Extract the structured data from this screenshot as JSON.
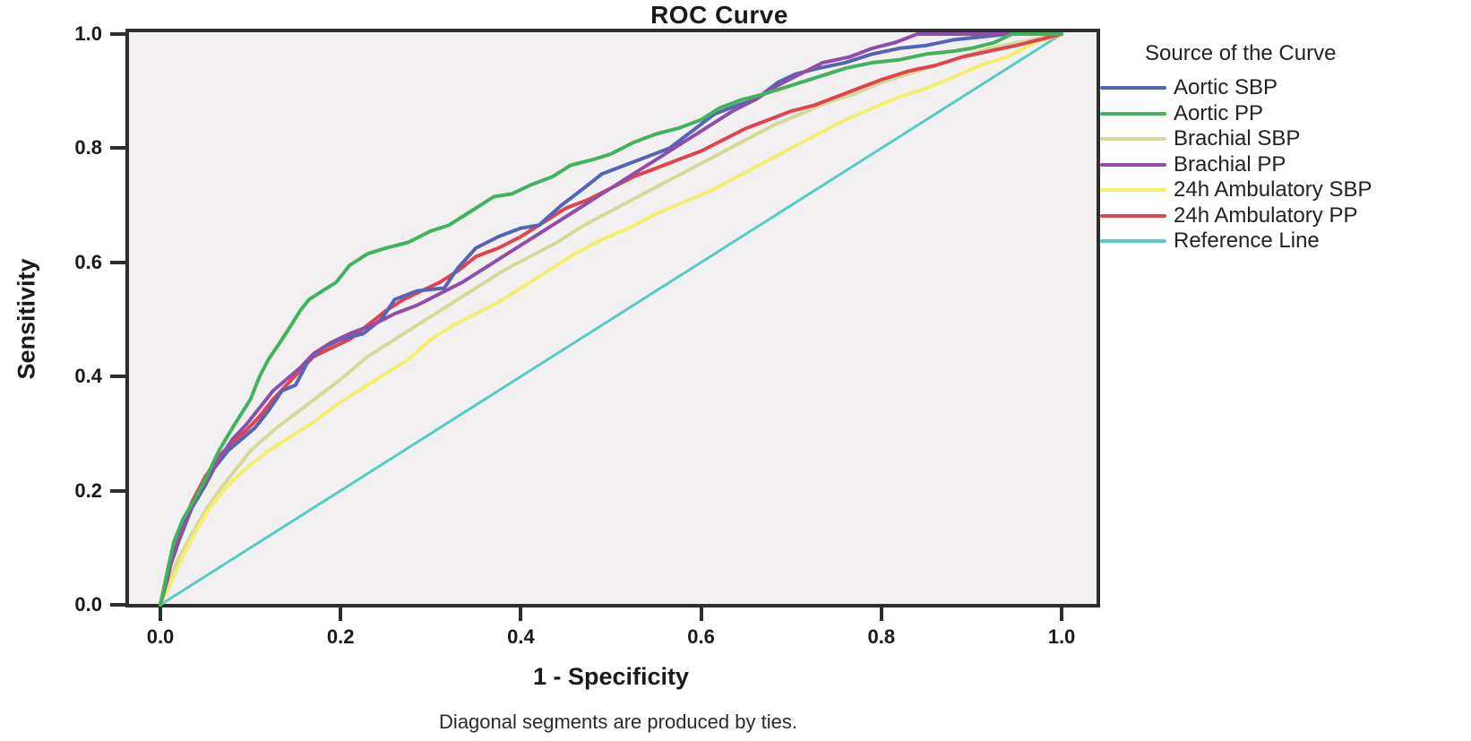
{
  "chart_data": {
    "type": "line",
    "title": "ROC Curve",
    "xlabel": "1 - Specificity",
    "ylabel": "Sensitivity",
    "legend_title": "Source of the Curve",
    "footnote": "Diagonal segments are produced by ties.",
    "legend_position": "right",
    "grid": false,
    "xlim": [
      0.0,
      1.0
    ],
    "ylim": [
      0.0,
      1.0
    ],
    "plot_background": "#f2f0f0",
    "frame_color": "#2e2e2e",
    "x_ticks": [
      {
        "value": 0.0,
        "label": "0.0"
      },
      {
        "value": 0.2,
        "label": "0.2"
      },
      {
        "value": 0.4,
        "label": "0.4"
      },
      {
        "value": 0.6,
        "label": "0.6"
      },
      {
        "value": 0.8,
        "label": "0.8"
      },
      {
        "value": 1.0,
        "label": "1.0"
      }
    ],
    "y_ticks": [
      {
        "value": 0.0,
        "label": "0.0"
      },
      {
        "value": 0.2,
        "label": "0.2"
      },
      {
        "value": 0.4,
        "label": "0.4"
      },
      {
        "value": 0.6,
        "label": "0.6"
      },
      {
        "value": 0.8,
        "label": "0.8"
      },
      {
        "value": 1.0,
        "label": "1.0"
      }
    ],
    "series": [
      {
        "name": "Aortic SBP",
        "color": "#5564b4",
        "points": [
          [
            0,
            0
          ],
          [
            0.008,
            0.05
          ],
          [
            0.015,
            0.09
          ],
          [
            0.025,
            0.13
          ],
          [
            0.035,
            0.17
          ],
          [
            0.05,
            0.21
          ],
          [
            0.06,
            0.24
          ],
          [
            0.075,
            0.27
          ],
          [
            0.09,
            0.29
          ],
          [
            0.105,
            0.31
          ],
          [
            0.12,
            0.34
          ],
          [
            0.135,
            0.375
          ],
          [
            0.15,
            0.385
          ],
          [
            0.165,
            0.43
          ],
          [
            0.18,
            0.45
          ],
          [
            0.2,
            0.465
          ],
          [
            0.225,
            0.475
          ],
          [
            0.245,
            0.5
          ],
          [
            0.26,
            0.535
          ],
          [
            0.285,
            0.55
          ],
          [
            0.315,
            0.555
          ],
          [
            0.33,
            0.59
          ],
          [
            0.35,
            0.625
          ],
          [
            0.375,
            0.645
          ],
          [
            0.4,
            0.66
          ],
          [
            0.42,
            0.665
          ],
          [
            0.445,
            0.7
          ],
          [
            0.47,
            0.73
          ],
          [
            0.49,
            0.755
          ],
          [
            0.515,
            0.77
          ],
          [
            0.54,
            0.785
          ],
          [
            0.565,
            0.8
          ],
          [
            0.59,
            0.83
          ],
          [
            0.615,
            0.86
          ],
          [
            0.64,
            0.875
          ],
          [
            0.66,
            0.885
          ],
          [
            0.685,
            0.915
          ],
          [
            0.705,
            0.93
          ],
          [
            0.73,
            0.94
          ],
          [
            0.76,
            0.95
          ],
          [
            0.79,
            0.965
          ],
          [
            0.82,
            0.975
          ],
          [
            0.85,
            0.98
          ],
          [
            0.88,
            0.99
          ],
          [
            0.91,
            0.995
          ],
          [
            0.94,
            1
          ],
          [
            1,
            1
          ]
        ]
      },
      {
        "name": "Aortic PP",
        "color": "#41b35f",
        "points": [
          [
            0,
            0
          ],
          [
            0.008,
            0.06
          ],
          [
            0.015,
            0.11
          ],
          [
            0.025,
            0.15
          ],
          [
            0.04,
            0.19
          ],
          [
            0.05,
            0.22
          ],
          [
            0.065,
            0.27
          ],
          [
            0.08,
            0.31
          ],
          [
            0.09,
            0.335
          ],
          [
            0.1,
            0.36
          ],
          [
            0.11,
            0.4
          ],
          [
            0.12,
            0.43
          ],
          [
            0.135,
            0.465
          ],
          [
            0.145,
            0.49
          ],
          [
            0.155,
            0.515
          ],
          [
            0.165,
            0.535
          ],
          [
            0.18,
            0.55
          ],
          [
            0.195,
            0.565
          ],
          [
            0.21,
            0.595
          ],
          [
            0.23,
            0.615
          ],
          [
            0.25,
            0.625
          ],
          [
            0.275,
            0.635
          ],
          [
            0.3,
            0.655
          ],
          [
            0.32,
            0.665
          ],
          [
            0.345,
            0.69
          ],
          [
            0.37,
            0.715
          ],
          [
            0.39,
            0.72
          ],
          [
            0.41,
            0.735
          ],
          [
            0.435,
            0.75
          ],
          [
            0.455,
            0.77
          ],
          [
            0.48,
            0.78
          ],
          [
            0.5,
            0.79
          ],
          [
            0.525,
            0.81
          ],
          [
            0.55,
            0.825
          ],
          [
            0.575,
            0.835
          ],
          [
            0.6,
            0.85
          ],
          [
            0.62,
            0.87
          ],
          [
            0.645,
            0.885
          ],
          [
            0.67,
            0.895
          ],
          [
            0.7,
            0.91
          ],
          [
            0.73,
            0.925
          ],
          [
            0.76,
            0.94
          ],
          [
            0.79,
            0.95
          ],
          [
            0.82,
            0.955
          ],
          [
            0.85,
            0.965
          ],
          [
            0.88,
            0.97
          ],
          [
            0.9,
            0.975
          ],
          [
            0.925,
            0.985
          ],
          [
            0.945,
            1
          ],
          [
            1,
            1
          ]
        ]
      },
      {
        "name": "Brachial SBP",
        "color": "#d6d89c",
        "points": [
          [
            0,
            0
          ],
          [
            0.01,
            0.045
          ],
          [
            0.02,
            0.08
          ],
          [
            0.035,
            0.125
          ],
          [
            0.05,
            0.165
          ],
          [
            0.065,
            0.2
          ],
          [
            0.08,
            0.23
          ],
          [
            0.1,
            0.27
          ],
          [
            0.125,
            0.305
          ],
          [
            0.15,
            0.335
          ],
          [
            0.175,
            0.365
          ],
          [
            0.2,
            0.395
          ],
          [
            0.23,
            0.435
          ],
          [
            0.26,
            0.465
          ],
          [
            0.29,
            0.495
          ],
          [
            0.32,
            0.525
          ],
          [
            0.35,
            0.555
          ],
          [
            0.38,
            0.585
          ],
          [
            0.41,
            0.61
          ],
          [
            0.44,
            0.635
          ],
          [
            0.47,
            0.665
          ],
          [
            0.5,
            0.69
          ],
          [
            0.53,
            0.715
          ],
          [
            0.56,
            0.74
          ],
          [
            0.59,
            0.765
          ],
          [
            0.62,
            0.79
          ],
          [
            0.65,
            0.815
          ],
          [
            0.68,
            0.84
          ],
          [
            0.71,
            0.86
          ],
          [
            0.74,
            0.88
          ],
          [
            0.77,
            0.895
          ],
          [
            0.8,
            0.915
          ],
          [
            0.83,
            0.93
          ],
          [
            0.86,
            0.945
          ],
          [
            0.89,
            0.96
          ],
          [
            0.92,
            0.975
          ],
          [
            0.95,
            0.985
          ],
          [
            1,
            1
          ]
        ]
      },
      {
        "name": "Brachial PP",
        "color": "#8f4fa9",
        "points": [
          [
            0,
            0
          ],
          [
            0.008,
            0.055
          ],
          [
            0.018,
            0.1
          ],
          [
            0.028,
            0.15
          ],
          [
            0.04,
            0.19
          ],
          [
            0.05,
            0.215
          ],
          [
            0.065,
            0.255
          ],
          [
            0.08,
            0.29
          ],
          [
            0.095,
            0.315
          ],
          [
            0.11,
            0.345
          ],
          [
            0.125,
            0.375
          ],
          [
            0.14,
            0.395
          ],
          [
            0.155,
            0.415
          ],
          [
            0.17,
            0.44
          ],
          [
            0.19,
            0.46
          ],
          [
            0.21,
            0.475
          ],
          [
            0.235,
            0.49
          ],
          [
            0.26,
            0.51
          ],
          [
            0.285,
            0.525
          ],
          [
            0.31,
            0.545
          ],
          [
            0.335,
            0.565
          ],
          [
            0.36,
            0.59
          ],
          [
            0.385,
            0.615
          ],
          [
            0.41,
            0.64
          ],
          [
            0.435,
            0.665
          ],
          [
            0.46,
            0.69
          ],
          [
            0.485,
            0.715
          ],
          [
            0.51,
            0.74
          ],
          [
            0.535,
            0.765
          ],
          [
            0.56,
            0.79
          ],
          [
            0.585,
            0.815
          ],
          [
            0.61,
            0.84
          ],
          [
            0.635,
            0.865
          ],
          [
            0.66,
            0.885
          ],
          [
            0.685,
            0.91
          ],
          [
            0.71,
            0.93
          ],
          [
            0.735,
            0.95
          ],
          [
            0.765,
            0.96
          ],
          [
            0.79,
            0.975
          ],
          [
            0.815,
            0.985
          ],
          [
            0.84,
            1
          ],
          [
            1,
            1
          ]
        ]
      },
      {
        "name": "24h Ambulatory SBP",
        "color": "#f5ef70",
        "points": [
          [
            0,
            0
          ],
          [
            0.012,
            0.04
          ],
          [
            0.025,
            0.085
          ],
          [
            0.04,
            0.13
          ],
          [
            0.055,
            0.17
          ],
          [
            0.07,
            0.2
          ],
          [
            0.085,
            0.225
          ],
          [
            0.1,
            0.245
          ],
          [
            0.12,
            0.27
          ],
          [
            0.145,
            0.295
          ],
          [
            0.17,
            0.32
          ],
          [
            0.195,
            0.35
          ],
          [
            0.22,
            0.375
          ],
          [
            0.25,
            0.405
          ],
          [
            0.275,
            0.43
          ],
          [
            0.3,
            0.465
          ],
          [
            0.325,
            0.49
          ],
          [
            0.35,
            0.51
          ],
          [
            0.375,
            0.53
          ],
          [
            0.4,
            0.555
          ],
          [
            0.43,
            0.585
          ],
          [
            0.46,
            0.615
          ],
          [
            0.49,
            0.64
          ],
          [
            0.52,
            0.66
          ],
          [
            0.55,
            0.685
          ],
          [
            0.58,
            0.705
          ],
          [
            0.61,
            0.725
          ],
          [
            0.64,
            0.75
          ],
          [
            0.67,
            0.775
          ],
          [
            0.7,
            0.8
          ],
          [
            0.73,
            0.825
          ],
          [
            0.76,
            0.85
          ],
          [
            0.79,
            0.87
          ],
          [
            0.82,
            0.89
          ],
          [
            0.85,
            0.905
          ],
          [
            0.88,
            0.925
          ],
          [
            0.91,
            0.945
          ],
          [
            0.94,
            0.96
          ],
          [
            0.97,
            0.985
          ],
          [
            1,
            1
          ]
        ]
      },
      {
        "name": "24h Ambulatory PP",
        "color": "#df454c",
        "points": [
          [
            0,
            0
          ],
          [
            0.008,
            0.045
          ],
          [
            0.015,
            0.1
          ],
          [
            0.025,
            0.14
          ],
          [
            0.035,
            0.18
          ],
          [
            0.05,
            0.225
          ],
          [
            0.065,
            0.26
          ],
          [
            0.08,
            0.285
          ],
          [
            0.095,
            0.305
          ],
          [
            0.11,
            0.33
          ],
          [
            0.125,
            0.36
          ],
          [
            0.14,
            0.385
          ],
          [
            0.155,
            0.41
          ],
          [
            0.17,
            0.435
          ],
          [
            0.19,
            0.45
          ],
          [
            0.21,
            0.465
          ],
          [
            0.23,
            0.49
          ],
          [
            0.25,
            0.515
          ],
          [
            0.27,
            0.535
          ],
          [
            0.29,
            0.55
          ],
          [
            0.31,
            0.565
          ],
          [
            0.33,
            0.585
          ],
          [
            0.35,
            0.61
          ],
          [
            0.375,
            0.625
          ],
          [
            0.4,
            0.645
          ],
          [
            0.425,
            0.67
          ],
          [
            0.45,
            0.695
          ],
          [
            0.475,
            0.71
          ],
          [
            0.5,
            0.73
          ],
          [
            0.525,
            0.75
          ],
          [
            0.55,
            0.765
          ],
          [
            0.575,
            0.78
          ],
          [
            0.6,
            0.795
          ],
          [
            0.625,
            0.815
          ],
          [
            0.65,
            0.835
          ],
          [
            0.675,
            0.85
          ],
          [
            0.7,
            0.865
          ],
          [
            0.725,
            0.875
          ],
          [
            0.75,
            0.89
          ],
          [
            0.775,
            0.905
          ],
          [
            0.8,
            0.92
          ],
          [
            0.83,
            0.935
          ],
          [
            0.86,
            0.945
          ],
          [
            0.89,
            0.96
          ],
          [
            0.92,
            0.97
          ],
          [
            0.95,
            0.98
          ],
          [
            0.975,
            0.99
          ],
          [
            1,
            1
          ]
        ]
      },
      {
        "name": "Reference Line",
        "color": "#56ccc6",
        "is_reference": true,
        "points": [
          [
            0,
            0
          ],
          [
            1,
            1
          ]
        ]
      }
    ]
  }
}
